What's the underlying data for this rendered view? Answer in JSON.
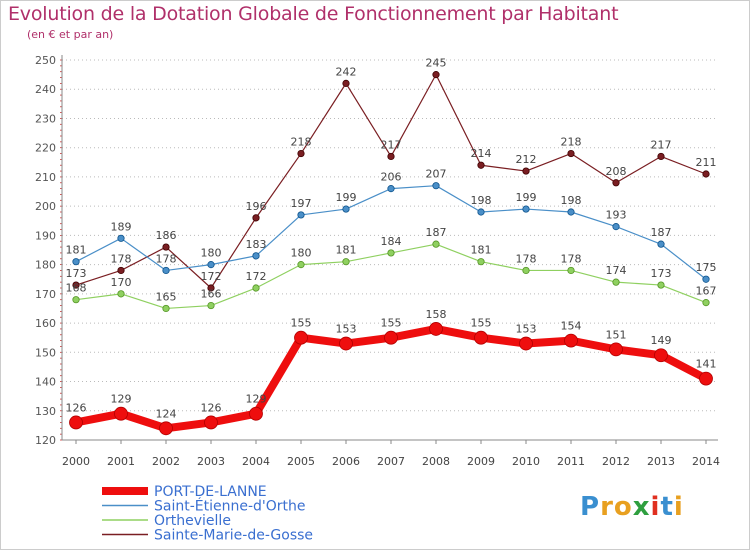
{
  "title": "Evolution de la Dotation Globale de Fonctionnement par Habitant",
  "subtitle": "(en € et par an)",
  "logo": {
    "letters": [
      "P",
      "r",
      "o",
      "x",
      "i",
      "t",
      "i"
    ],
    "colors": [
      "#3a8fd0",
      "#e8a020",
      "#e8a020",
      "#2f9f3f",
      "#e03020",
      "#3a8fd0",
      "#e8a020"
    ]
  },
  "chart_data": {
    "type": "line",
    "title": "Evolution de la Dotation Globale de Fonctionnement par Habitant",
    "subtitle": "(en € et par an)",
    "xlabel": "",
    "ylabel": "",
    "ylim": [
      120,
      250
    ],
    "yticks": [
      120,
      130,
      140,
      150,
      160,
      170,
      180,
      190,
      200,
      210,
      220,
      230,
      240,
      250
    ],
    "categories": [
      "2000",
      "2001",
      "2002",
      "2003",
      "2004",
      "2005",
      "2006",
      "2007",
      "2008",
      "2009",
      "2010",
      "2011",
      "2012",
      "2013",
      "2014"
    ],
    "grid": "horizontal-dotted",
    "legend_position": "bottom-left",
    "series": [
      {
        "name": "Sainte-Marie-de-Gosse",
        "color": "#7a1e22",
        "values": [
          173,
          178,
          186,
          172,
          196,
          218,
          242,
          217,
          245,
          214,
          212,
          218,
          208,
          217,
          211
        ]
      },
      {
        "name": "Saint-Étienne-d'Orthe",
        "color": "#4a8fc8",
        "values": [
          181,
          189,
          178,
          180,
          183,
          197,
          199,
          206,
          207,
          198,
          199,
          198,
          193,
          187,
          175
        ]
      },
      {
        "name": "Orthevielle",
        "color": "#8fd060",
        "values": [
          168,
          170,
          165,
          166,
          172,
          180,
          181,
          184,
          187,
          181,
          178,
          178,
          174,
          173,
          167
        ]
      },
      {
        "name": "PORT-DE-LANNE",
        "color": "#ee0e0e",
        "values": [
          126,
          129,
          124,
          126,
          129,
          155,
          153,
          155,
          158,
          155,
          153,
          154,
          151,
          149,
          141
        ]
      }
    ],
    "legend_order": [
      "PORT-DE-LANNE",
      "Saint-Étienne-d'Orthe",
      "Orthevielle",
      "Sainte-Marie-de-Gosse"
    ]
  }
}
